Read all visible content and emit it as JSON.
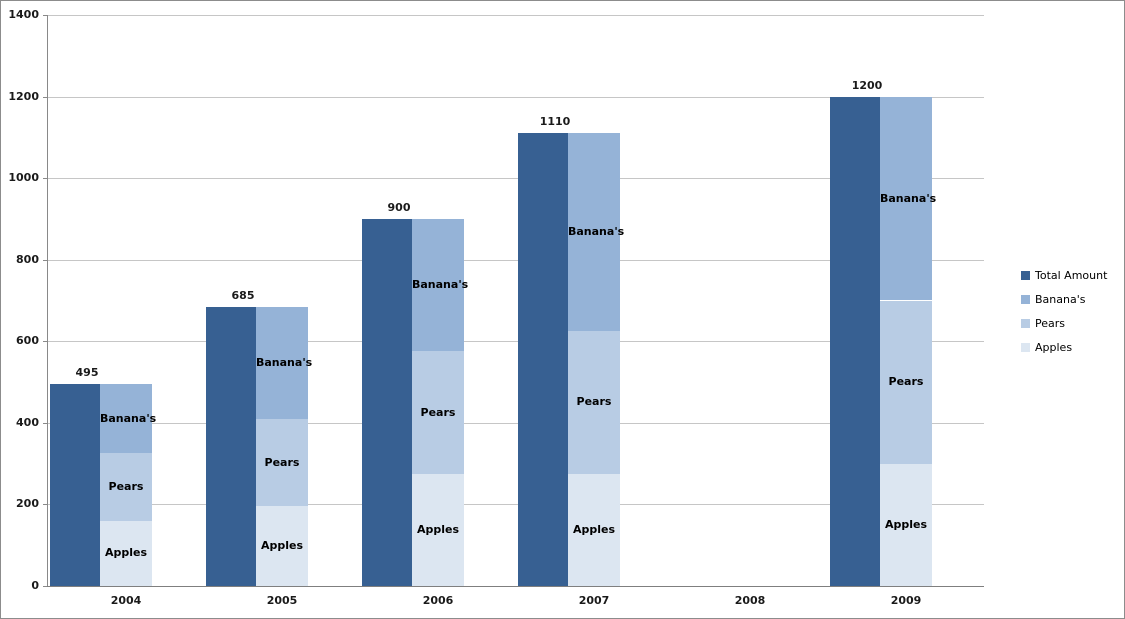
{
  "chart_data": {
    "type": "bar",
    "variant": "per-category pair: solid total bar beside stacked component bar",
    "title": "",
    "xlabel": "",
    "ylabel": "",
    "categories": [
      "2004",
      "2005",
      "2006",
      "2007",
      "2008",
      "2009"
    ],
    "series": [
      {
        "name": "Total Amount",
        "color": "#376092",
        "values": [
          495,
          685,
          900,
          1110,
          0,
          1200
        ]
      },
      {
        "name": "Banana's",
        "color": "#95b3d7",
        "values": [
          170,
          275,
          325,
          485,
          0,
          500
        ]
      },
      {
        "name": "Pears",
        "color": "#b8cce4",
        "values": [
          165,
          215,
          300,
          350,
          0,
          400
        ]
      },
      {
        "name": "Apples",
        "color": "#dce6f1",
        "values": [
          160,
          195,
          275,
          275,
          0,
          300
        ]
      }
    ],
    "stack_order_bottom_to_top": [
      "Apples",
      "Pears",
      "Banana's"
    ],
    "total_data_labels": [
      "495",
      "685",
      "900",
      "1110",
      "",
      "1200"
    ],
    "segment_inner_labels": [
      "Banana's",
      "Pears",
      "Apples"
    ],
    "axis_y": {
      "min": 0,
      "max": 1400,
      "step": 200,
      "tick_labels": [
        "0",
        "200",
        "400",
        "600",
        "800",
        "1000",
        "1200",
        "1400"
      ]
    },
    "grid": "horizontal gridlines on",
    "legend": {
      "position": "right",
      "entries": [
        "Total Amount",
        "Banana's",
        "Pears",
        "Apples"
      ]
    }
  },
  "colors": {
    "background": "#ffffff",
    "gridline": "#c6c6c6",
    "axis_line": "#898989",
    "text": "#1a1a1a",
    "page_border": "#8c8c8c"
  }
}
